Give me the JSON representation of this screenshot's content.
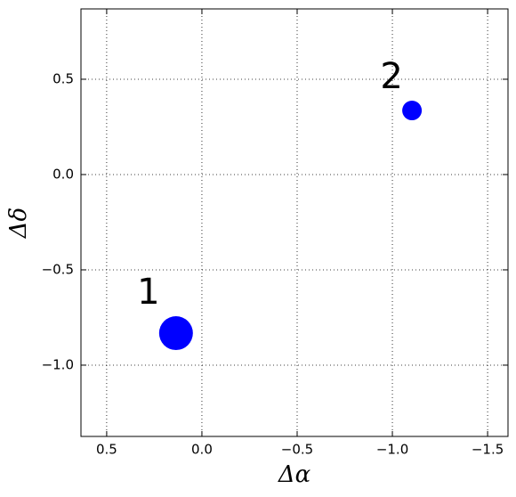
{
  "chart_data": {
    "type": "scatter",
    "x_label": "Δα",
    "y_label": "Δδ",
    "x": [
      0.136,
      -1.103
    ],
    "values": [
      -0.832,
      0.336
    ],
    "sizes": [
      19,
      11
    ],
    "labels": [
      "1",
      "2"
    ],
    "color": "#0000ff",
    "xlim": [
      0.635,
      -1.607
    ],
    "ylim": [
      -1.374,
      0.869
    ],
    "xticks": [
      0.5,
      {
        "value": 0.0,
        "label": "0.0"
      },
      {
        "value": -0.5,
        "label": "−0.5"
      },
      {
        "value": -1.0,
        "label": "−1.0"
      },
      {
        "value": -1.5,
        "label": "−1.5"
      }
    ],
    "yticks": [
      {
        "value": -1.0,
        "label": "−1.0"
      },
      {
        "value": -0.5,
        "label": "−0.5"
      },
      {
        "value": 0.0,
        "label": "0.0"
      },
      0.5
    ],
    "grid": true
  }
}
